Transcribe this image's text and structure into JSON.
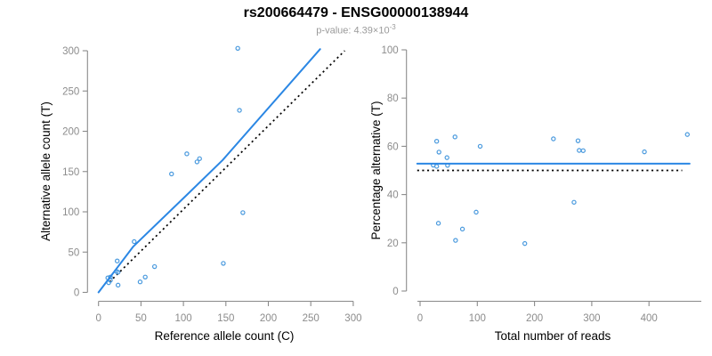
{
  "figure": {
    "title": "rs200664479 - ENSG00000138944",
    "subtitle_prefix": "p-value: 4.39×10",
    "subtitle_exponent": "-3"
  },
  "colors": {
    "trend_line": "#2b87e4",
    "point_stroke": "#4a9ade",
    "reference_line": "#000000",
    "axis": "#8a8a8a",
    "tick_label": "#8c8c8c",
    "axis_title": "#000000",
    "title": "#000000",
    "subtitle": "#9a9a9a",
    "background": "#ffffff"
  },
  "chart_data": [
    {
      "id": "counts",
      "type": "scatter",
      "xlabel": "Reference allele count (C)",
      "ylabel": "Alternative allele count (T)",
      "xlim": [
        0,
        300
      ],
      "ylim": [
        0,
        300
      ],
      "xticks": [
        0,
        50,
        100,
        150,
        200,
        250,
        300
      ],
      "yticks": [
        0,
        50,
        100,
        150,
        200,
        250,
        300
      ],
      "grid": false,
      "points": [
        [
          12,
          12
        ],
        [
          11,
          18
        ],
        [
          14,
          15
        ],
        [
          14,
          19
        ],
        [
          23,
          25
        ],
        [
          21,
          26
        ],
        [
          23,
          9
        ],
        [
          22,
          39
        ],
        [
          42,
          63
        ],
        [
          49,
          13
        ],
        [
          55,
          19
        ],
        [
          66,
          32
        ],
        [
          86,
          147
        ],
        [
          104,
          172
        ],
        [
          116,
          162
        ],
        [
          119,
          166
        ],
        [
          147,
          36
        ],
        [
          164,
          303
        ],
        [
          166,
          226
        ],
        [
          170,
          99
        ]
      ],
      "trend_line": {
        "style": "solid",
        "points": [
          [
            0,
            0
          ],
          [
            41,
            57
          ],
          [
            104,
            121
          ],
          [
            146,
            164
          ],
          [
            261,
            302
          ]
        ]
      },
      "reference_line": {
        "style": "dashed",
        "points": [
          [
            13,
            13
          ],
          [
            290,
            300
          ]
        ]
      }
    },
    {
      "id": "percentage",
      "type": "scatter",
      "xlabel": "Total number of reads",
      "ylabel": "Percentage alternative (T)",
      "xlim": [
        0,
        400
      ],
      "ylim": [
        0,
        100
      ],
      "xticks": [
        0,
        100,
        200,
        300,
        400
      ],
      "yticks": [
        0,
        20,
        40,
        60,
        80,
        100
      ],
      "grid": false,
      "points": [
        [
          23,
          52.2
        ],
        [
          29,
          62.1
        ],
        [
          29,
          51.7
        ],
        [
          33,
          57.6
        ],
        [
          48,
          52.1
        ],
        [
          47,
          55.3
        ],
        [
          32,
          28.1
        ],
        [
          61,
          63.9
        ],
        [
          105,
          60.0
        ],
        [
          62,
          21.0
        ],
        [
          74,
          25.7
        ],
        [
          98,
          32.7
        ],
        [
          233,
          63.1
        ],
        [
          276,
          62.3
        ],
        [
          278,
          58.3
        ],
        [
          285,
          58.2
        ],
        [
          183,
          19.7
        ],
        [
          467,
          64.9
        ],
        [
          392,
          57.7
        ],
        [
          269,
          36.8
        ]
      ],
      "trend_line": {
        "style": "solid",
        "points": [
          [
            -5,
            52.8
          ],
          [
            471,
            52.8
          ]
        ]
      },
      "reference_line": {
        "style": "dashed",
        "points": [
          [
            -5,
            50
          ],
          [
            458,
            50
          ]
        ]
      }
    }
  ]
}
